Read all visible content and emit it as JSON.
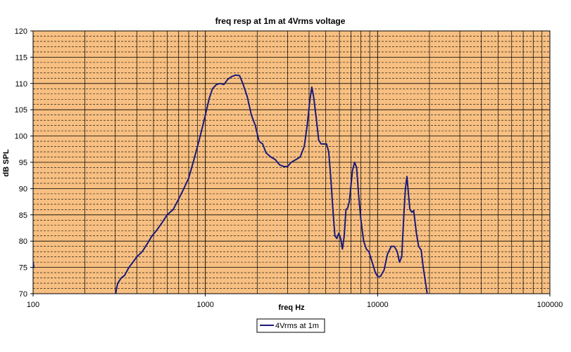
{
  "chart_data": {
    "type": "line",
    "title": "freq resp at 1m at 4Vrms voltage",
    "xlabel": "freq Hz",
    "ylabel": "dB SPL",
    "xscale": "log",
    "xlim": [
      100,
      100000
    ],
    "ylim": [
      70,
      120
    ],
    "x_ticks": [
      100,
      1000,
      10000,
      100000
    ],
    "x_tick_labels": [
      "100",
      "1000",
      "10000",
      "100000"
    ],
    "y_ticks": [
      70,
      75,
      80,
      85,
      90,
      95,
      100,
      105,
      110,
      115,
      120
    ],
    "y_tick_labels": [
      "70",
      "75",
      "80",
      "85",
      "90",
      "95",
      "100",
      "105",
      "110",
      "115",
      "120"
    ],
    "grid": true,
    "minor_y_step": 1,
    "legend_position": "bottom-center",
    "plot_background": "#f7bf81",
    "line_color": "#1a1a7a",
    "series": [
      {
        "name": "4Vrms at 1m",
        "segments": [
          [
            [
              100,
              76
            ],
            [
              101,
              75
            ]
          ],
          [
            [
              302,
              70
            ],
            [
              305,
              71
            ],
            [
              310,
              72
            ],
            [
              325,
              73
            ],
            [
              340,
              73.5
            ],
            [
              360,
              75
            ],
            [
              380,
              76
            ],
            [
              400,
              77
            ],
            [
              430,
              78
            ],
            [
              460,
              79.5
            ],
            [
              490,
              81
            ],
            [
              520,
              82
            ],
            [
              560,
              83.5
            ],
            [
              600,
              85
            ],
            [
              650,
              86
            ],
            [
              700,
              88
            ],
            [
              750,
              90
            ],
            [
              800,
              92
            ],
            [
              850,
              95
            ],
            [
              900,
              98
            ],
            [
              950,
              101
            ],
            [
              1000,
              104
            ],
            [
              1050,
              107
            ],
            [
              1100,
              109
            ],
            [
              1160,
              109.8
            ],
            [
              1220,
              110
            ],
            [
              1280,
              109.8
            ],
            [
              1350,
              110.8
            ],
            [
              1420,
              111.3
            ],
            [
              1500,
              111.6
            ],
            [
              1580,
              111.5
            ],
            [
              1650,
              110
            ],
            [
              1750,
              107.5
            ],
            [
              1850,
              104
            ],
            [
              1950,
              102
            ],
            [
              2050,
              99
            ],
            [
              2150,
              98.5
            ],
            [
              2250,
              96.8
            ],
            [
              2400,
              96
            ],
            [
              2550,
              95.5
            ],
            [
              2700,
              94.5
            ],
            [
              2850,
              94.2
            ],
            [
              3000,
              94.2
            ],
            [
              3150,
              95
            ],
            [
              3350,
              95.5
            ],
            [
              3550,
              96
            ],
            [
              3750,
              98
            ],
            [
              3900,
              102
            ],
            [
              4050,
              107
            ],
            [
              4150,
              109.3
            ],
            [
              4250,
              107.5
            ],
            [
              4400,
              103.5
            ],
            [
              4550,
              99.2
            ],
            [
              4700,
              98.5
            ],
            [
              4900,
              98.5
            ],
            [
              5050,
              98.5
            ],
            [
              5200,
              97
            ],
            [
              5350,
              92
            ],
            [
              5500,
              86
            ],
            [
              5650,
              81
            ],
            [
              5800,
              80.5
            ],
            [
              5950,
              81.5
            ],
            [
              6100,
              80.5
            ],
            [
              6250,
              78.5
            ],
            [
              6400,
              81
            ],
            [
              6550,
              86
            ],
            [
              6700,
              86.3
            ],
            [
              6850,
              87.5
            ],
            [
              7000,
              90.5
            ],
            [
              7150,
              93.5
            ],
            [
              7350,
              95
            ],
            [
              7550,
              94
            ],
            [
              7750,
              89
            ],
            [
              8000,
              84
            ],
            [
              8300,
              80
            ],
            [
              8600,
              78.5
            ],
            [
              8900,
              78
            ],
            [
              9300,
              76
            ],
            [
              9700,
              74
            ],
            [
              10000,
              73.3
            ],
            [
              10400,
              73.3
            ],
            [
              10900,
              74.5
            ],
            [
              11400,
              77.5
            ],
            [
              12000,
              79
            ],
            [
              12500,
              79
            ],
            [
              13000,
              78
            ],
            [
              13400,
              76
            ],
            [
              13800,
              77
            ],
            [
              14200,
              85
            ],
            [
              14500,
              90
            ],
            [
              14800,
              92.3
            ],
            [
              15100,
              89
            ],
            [
              15400,
              86
            ],
            [
              15800,
              85.5
            ],
            [
              16200,
              85.8
            ],
            [
              16800,
              81.5
            ],
            [
              17300,
              79
            ],
            [
              17900,
              78.3
            ],
            [
              18400,
              75
            ],
            [
              19000,
              72
            ],
            [
              19400,
              70
            ]
          ]
        ]
      }
    ]
  }
}
